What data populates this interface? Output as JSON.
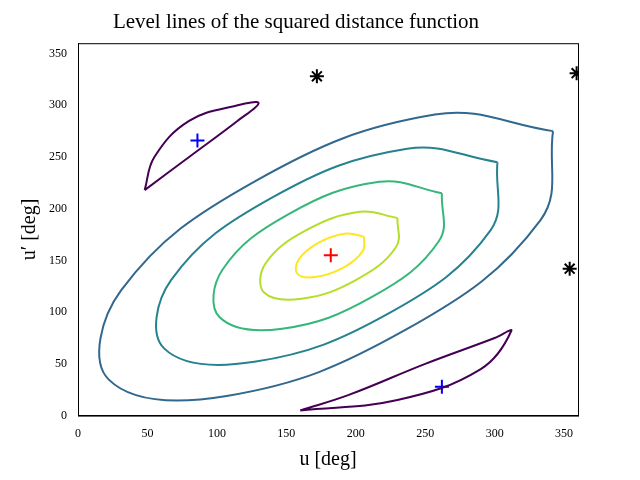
{
  "chart_data": {
    "type": "contour",
    "title": "Level lines of the squared distance function",
    "x_label": "u [deg]",
    "y_label": "u′ [deg]",
    "xlim": [
      0,
      360
    ],
    "xticks": [
      0,
      50,
      100,
      150,
      200,
      250,
      300,
      350
    ],
    "ylim": [
      0,
      360
    ],
    "yticks": [
      0,
      50,
      100,
      150,
      200,
      250,
      300,
      350
    ],
    "grid": false,
    "series": [
      {
        "type": "line",
        "color": "#fde725",
        "points": [
          [
            206,
            173
          ],
          [
            193,
            176
          ],
          [
            173,
            167
          ],
          [
            159,
            151
          ],
          [
            158,
            137
          ],
          [
            171,
            134
          ],
          [
            191,
            143
          ],
          [
            205,
            159
          ],
          [
            206,
            173
          ]
        ]
      },
      {
        "type": "line",
        "color": "#b5de2b",
        "points": [
          [
            230,
            191
          ],
          [
            203,
            197
          ],
          [
            164,
            179
          ],
          [
            135,
            147
          ],
          [
            134,
            119
          ],
          [
            161,
            113
          ],
          [
            200,
            131
          ],
          [
            229,
            163
          ],
          [
            230,
            191
          ]
        ]
      },
      {
        "type": "line",
        "color": "#35b779",
        "points": [
          [
            262,
            215
          ],
          [
            217,
            226
          ],
          [
            152,
            195
          ],
          [
            104,
            141
          ],
          [
            102,
            95
          ],
          [
            147,
            84
          ],
          [
            212,
            115
          ],
          [
            260,
            169
          ],
          [
            262,
            215
          ]
        ]
      },
      {
        "type": "line",
        "color": "#26828e",
        "points": [
          [
            302,
            245
          ],
          [
            237,
            258
          ],
          [
            140,
            211
          ],
          [
            67,
            131
          ],
          [
            62,
            65
          ],
          [
            127,
            52
          ],
          [
            224,
            99
          ],
          [
            297,
            179
          ],
          [
            302,
            245
          ]
        ]
      },
      {
        "type": "line",
        "color": "#31688e",
        "points": [
          [
            342,
            275
          ],
          [
            257,
            291
          ],
          [
            128,
            227
          ],
          [
            31,
            121
          ],
          [
            22,
            35
          ],
          [
            107,
            19
          ],
          [
            236,
            83
          ],
          [
            333,
            189
          ],
          [
            342,
            275
          ]
        ]
      },
      {
        "type": "line",
        "color": "#440154",
        "points": [
          [
            48,
            218
          ],
          [
            80,
            250
          ],
          [
            115,
            285
          ],
          [
            130,
            302
          ],
          [
            115,
            300
          ],
          [
            80,
            285
          ],
          [
            55,
            250
          ],
          [
            48,
            218
          ]
        ]
      },
      {
        "type": "line",
        "color": "#440154",
        "points": [
          [
            160,
            5
          ],
          [
            230,
            15
          ],
          [
            290,
            45
          ],
          [
            312,
            82
          ],
          [
            300,
            75
          ],
          [
            250,
            50
          ],
          [
            195,
            20
          ],
          [
            160,
            5
          ]
        ]
      },
      {
        "type": "scatter",
        "color": "#ff0000",
        "marker": "plus",
        "points": [
          [
            182,
            155
          ]
        ]
      },
      {
        "type": "scatter",
        "color": "#0000ff",
        "marker": "plus",
        "points": [
          [
            86,
            266
          ],
          [
            262,
            28
          ]
        ]
      },
      {
        "type": "scatter",
        "color": "#000000",
        "marker": "star",
        "points": [
          [
            172,
            328
          ],
          [
            359,
            331
          ],
          [
            354,
            142
          ]
        ]
      }
    ]
  }
}
